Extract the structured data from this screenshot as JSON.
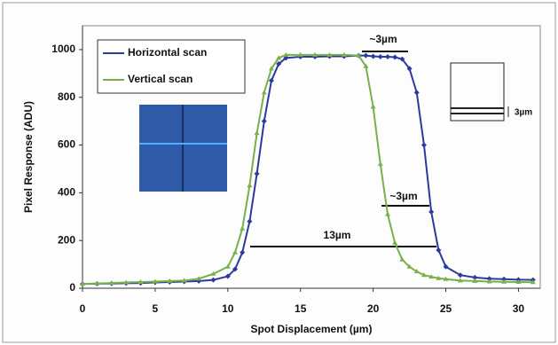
{
  "chart_data": {
    "type": "line",
    "x_label": "Spot Displacement (µm)",
    "y_label": "Pixel Response (ADU)",
    "x": [
      0,
      1,
      2,
      3,
      4,
      5,
      6,
      7,
      8,
      9,
      10,
      10.5,
      11,
      11.5,
      12,
      12.5,
      13,
      13.5,
      14,
      15,
      16,
      17,
      18,
      19,
      19.5,
      20,
      20.5,
      21,
      21.5,
      22,
      22.5,
      23,
      23.5,
      24,
      24.5,
      25,
      26,
      27,
      28,
      29,
      30,
      31
    ],
    "series": [
      {
        "name": "Horizontal scan",
        "color": "#2b3a9e",
        "values": [
          18,
          19,
          20,
          21,
          22,
          24,
          26,
          28,
          30,
          35,
          50,
          80,
          150,
          280,
          480,
          700,
          870,
          940,
          965,
          970,
          970,
          972,
          972,
          975,
          975,
          972,
          970,
          970,
          968,
          960,
          920,
          820,
          600,
          320,
          160,
          90,
          55,
          45,
          40,
          38,
          36,
          35
        ]
      },
      {
        "name": "Vertical scan",
        "color": "#78b04a",
        "values": [
          18,
          20,
          22,
          24,
          26,
          28,
          30,
          32,
          40,
          60,
          90,
          150,
          250,
          430,
          650,
          820,
          920,
          965,
          978,
          978,
          978,
          978,
          978,
          975,
          930,
          760,
          520,
          310,
          190,
          120,
          90,
          70,
          55,
          48,
          42,
          38,
          32,
          30,
          28,
          27,
          26,
          25
        ]
      }
    ],
    "xlim": [
      0,
      31.5
    ],
    "xticks": [
      0,
      5,
      10,
      15,
      20,
      25,
      30
    ],
    "ylim": [
      0,
      1100
    ],
    "yticks": [
      0,
      200,
      400,
      600,
      800,
      1000
    ],
    "annotations": [
      "~3µm",
      "~3µm",
      "13µm",
      "3µm"
    ]
  }
}
